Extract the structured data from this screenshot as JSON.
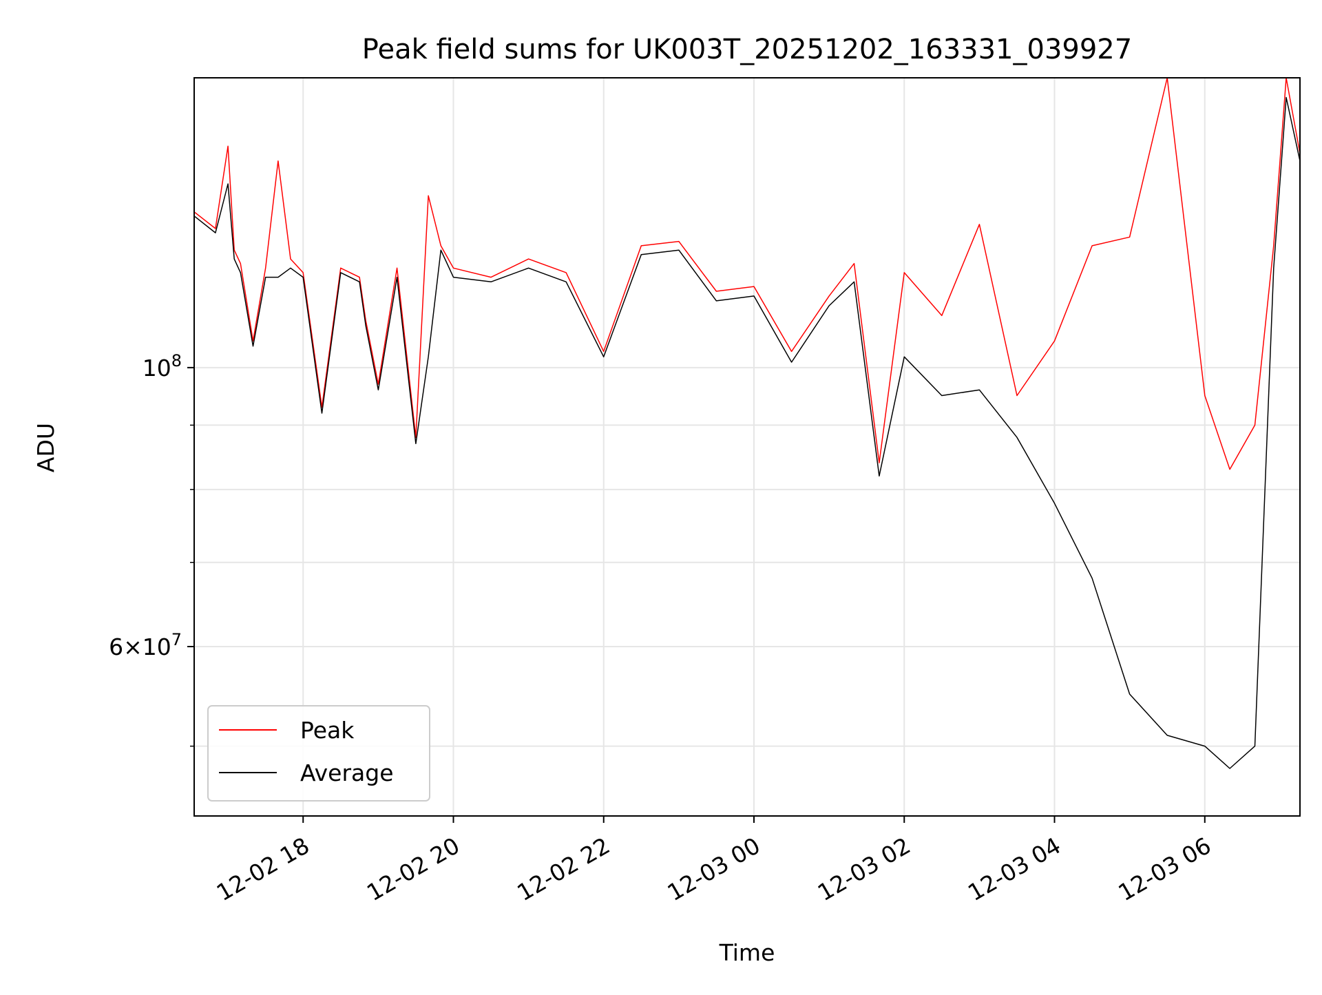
{
  "chart_data": {
    "type": "line",
    "title": "Peak field sums for UK003T_20251202_163331_039927",
    "xlabel": "Time",
    "ylabel": "ADU",
    "y_scale": "log",
    "ylim": [
      44000000,
      170000000
    ],
    "xlim": [
      "2025-12-02T16:33",
      "2025-12-03T07:16"
    ],
    "x_ticks": [
      "12-02 18",
      "12-02 20",
      "12-02 22",
      "12-03 00",
      "12-03 02",
      "12-03 04",
      "12-03 06"
    ],
    "x_tick_values": [
      "2025-12-02T18:00",
      "2025-12-02T20:00",
      "2025-12-02T22:00",
      "2025-12-03T00:00",
      "2025-12-03T02:00",
      "2025-12-03T04:00",
      "2025-12-03T06:00"
    ],
    "y_major_ticks": [
      {
        "value": 100000000,
        "base": "10",
        "exp": "8"
      },
      {
        "value": 60000000,
        "coef": "6",
        "base": "10",
        "exp": "7"
      }
    ],
    "y_minor_ticks": [
      50000000,
      70000000,
      80000000,
      90000000
    ],
    "grid": true,
    "legend_position": "lower-left",
    "colors": {
      "Peak": "#ff0000",
      "Average": "#000000"
    },
    "series": [
      {
        "name": "Average",
        "x": [
          "2025-12-02T16:33",
          "2025-12-02T16:50",
          "2025-12-02T17:00",
          "2025-12-02T17:05",
          "2025-12-02T17:10",
          "2025-12-02T17:20",
          "2025-12-02T17:30",
          "2025-12-02T17:40",
          "2025-12-02T17:50",
          "2025-12-02T18:00",
          "2025-12-02T18:15",
          "2025-12-02T18:30",
          "2025-12-02T18:45",
          "2025-12-02T18:50",
          "2025-12-02T19:00",
          "2025-12-02T19:15",
          "2025-12-02T19:30",
          "2025-12-02T19:40",
          "2025-12-02T19:50",
          "2025-12-02T20:00",
          "2025-12-02T20:30",
          "2025-12-02T21:00",
          "2025-12-02T21:30",
          "2025-12-02T22:00",
          "2025-12-02T22:30",
          "2025-12-02T23:00",
          "2025-12-02T23:30",
          "2025-12-03T00:00",
          "2025-12-03T00:30",
          "2025-12-03T01:00",
          "2025-12-03T01:20",
          "2025-12-03T01:40",
          "2025-12-03T02:00",
          "2025-12-03T02:30",
          "2025-12-03T03:00",
          "2025-12-03T03:30",
          "2025-12-03T04:00",
          "2025-12-03T04:30",
          "2025-12-03T05:00",
          "2025-12-03T05:30",
          "2025-12-03T06:00",
          "2025-12-03T06:20",
          "2025-12-03T06:40",
          "2025-12-03T06:55",
          "2025-12-03T07:05",
          "2025-12-03T07:16"
        ],
        "y": [
          132000000,
          128000000,
          140000000,
          122000000,
          119000000,
          104000000,
          118000000,
          118000000,
          120000000,
          118000000,
          92000000,
          119000000,
          117000000,
          108000000,
          96000000,
          118000000,
          87000000,
          102000000,
          124000000,
          118000000,
          117000000,
          120000000,
          117000000,
          102000000,
          123000000,
          124000000,
          113000000,
          114000000,
          101000000,
          112000000,
          117000000,
          82000000,
          102000000,
          95000000,
          96000000,
          88000000,
          78000000,
          68000000,
          55000000,
          51000000,
          50000000,
          48000000,
          50000000,
          120000000,
          164000000,
          146000000
        ]
      },
      {
        "name": "Peak",
        "x": [
          "2025-12-02T16:33",
          "2025-12-02T16:50",
          "2025-12-02T17:00",
          "2025-12-02T17:05",
          "2025-12-02T17:10",
          "2025-12-02T17:20",
          "2025-12-02T17:30",
          "2025-12-02T17:40",
          "2025-12-02T17:50",
          "2025-12-02T18:00",
          "2025-12-02T18:15",
          "2025-12-02T18:30",
          "2025-12-02T18:45",
          "2025-12-02T18:50",
          "2025-12-02T19:00",
          "2025-12-02T19:15",
          "2025-12-02T19:30",
          "2025-12-02T19:40",
          "2025-12-02T19:50",
          "2025-12-02T20:00",
          "2025-12-02T20:30",
          "2025-12-02T21:00",
          "2025-12-02T21:30",
          "2025-12-02T22:00",
          "2025-12-02T22:30",
          "2025-12-02T23:00",
          "2025-12-02T23:30",
          "2025-12-03T00:00",
          "2025-12-03T00:30",
          "2025-12-03T01:00",
          "2025-12-03T01:20",
          "2025-12-03T01:40",
          "2025-12-03T02:00",
          "2025-12-03T02:30",
          "2025-12-03T03:00",
          "2025-12-03T03:30",
          "2025-12-03T04:00",
          "2025-12-03T04:30",
          "2025-12-03T05:00",
          "2025-12-03T05:30",
          "2025-12-03T06:00",
          "2025-12-03T06:20",
          "2025-12-03T06:40",
          "2025-12-03T06:55",
          "2025-12-03T07:05",
          "2025-12-03T07:16"
        ],
        "y": [
          133000000,
          129000000,
          150000000,
          124000000,
          121000000,
          105000000,
          120000000,
          146000000,
          122000000,
          119000000,
          93000000,
          120000000,
          118000000,
          109000000,
          97000000,
          120000000,
          88000000,
          137000000,
          125000000,
          120000000,
          118000000,
          122000000,
          119000000,
          103000000,
          125000000,
          126000000,
          115000000,
          116000000,
          103000000,
          114000000,
          121000000,
          84000000,
          119000000,
          110000000,
          130000000,
          95000000,
          105000000,
          125000000,
          127000000,
          170000000,
          95000000,
          83000000,
          90000000,
          125000000,
          170000000,
          148000000
        ]
      }
    ]
  }
}
